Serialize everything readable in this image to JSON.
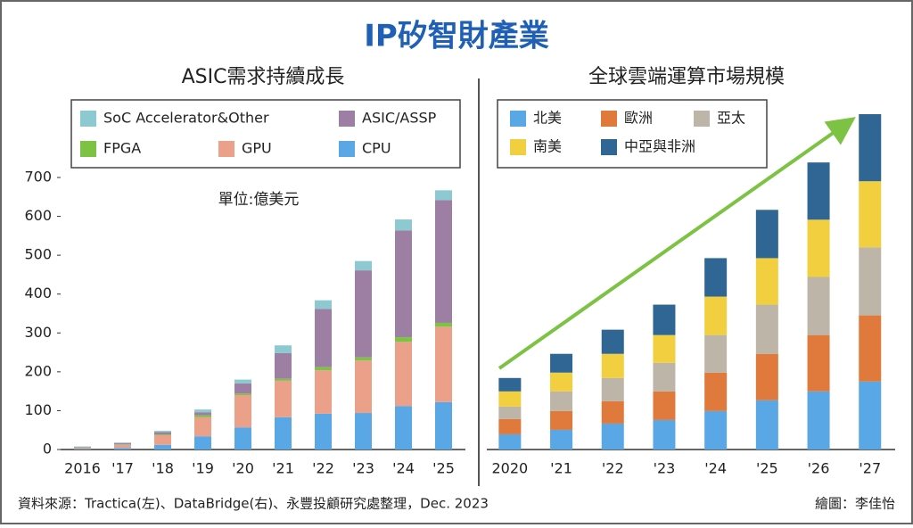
{
  "title": "IP矽智財產業",
  "source": "資料來源：Tractica(左)、DataBridge(右)、永豐投顧研究處整理，Dec. 2023",
  "credit": "繪圖：李佳怡",
  "chart_data": [
    {
      "type": "bar",
      "stacked": true,
      "title": "ASIC需求持續成長",
      "annotation": "單位:億美元",
      "categories": [
        "2016",
        "'17",
        "'18",
        "'19",
        "'20",
        "'21",
        "'22",
        "'23",
        "'24",
        "'25"
      ],
      "series": [
        {
          "name": "CPU",
          "color": "#5aa7e6",
          "values": [
            2,
            4,
            12,
            34,
            57,
            83,
            92,
            94,
            112,
            122
          ]
        },
        {
          "name": "GPU",
          "color": "#eba08a",
          "values": [
            3,
            8,
            25,
            49,
            83,
            94,
            112,
            135,
            165,
            194
          ]
        },
        {
          "name": "FPGA",
          "color": "#7cc243",
          "values": [
            1,
            1,
            2,
            5,
            4,
            5,
            8,
            8,
            12,
            10
          ]
        },
        {
          "name": "ASIC/ASSP",
          "color": "#9c7fa3",
          "values": [
            1,
            3,
            6,
            8,
            26,
            66,
            150,
            224,
            275,
            316
          ]
        },
        {
          "name": "SoC Accelerator&Other",
          "color": "#8cc9d0",
          "values": [
            1,
            2,
            3,
            7,
            10,
            20,
            22,
            24,
            28,
            25
          ]
        }
      ],
      "ylim": [
        0,
        700
      ],
      "yticks": [
        0,
        100,
        200,
        300,
        400,
        500,
        600,
        700
      ]
    },
    {
      "type": "bar",
      "stacked": true,
      "title": "全球雲端運算市場規模",
      "categories": [
        "2020",
        "'21",
        "'22",
        "'23",
        "'24",
        "'25",
        "'26",
        "'27"
      ],
      "series": [
        {
          "name": "北美",
          "color": "#5aa7e6",
          "values": [
            17,
            22,
            29,
            33,
            43,
            55,
            65,
            76
          ]
        },
        {
          "name": "歐洲",
          "color": "#e07a3c",
          "values": [
            17,
            21,
            25,
            32,
            43,
            52,
            63,
            74
          ]
        },
        {
          "name": "亞太",
          "color": "#bcb5a8",
          "values": [
            14,
            22,
            26,
            32,
            42,
            55,
            65,
            76
          ]
        },
        {
          "name": "南美",
          "color": "#f2cf3f",
          "values": [
            17,
            21,
            27,
            31,
            43,
            52,
            64,
            74
          ]
        },
        {
          "name": "中亞與非洲",
          "color": "#2f6693",
          "values": [
            15,
            21,
            27,
            34,
            43,
            54,
            64,
            75
          ]
        }
      ]
    }
  ]
}
